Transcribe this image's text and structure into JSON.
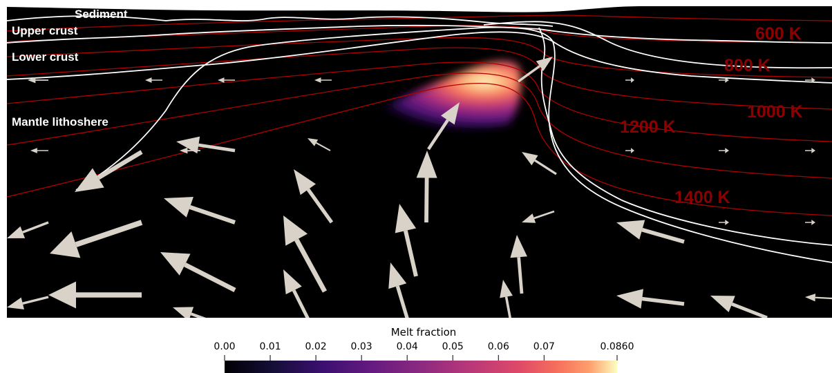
{
  "layer_labels": {
    "sediment": "Sediment",
    "upper_crust": "Upper crust",
    "lower_crust": "Lower crust",
    "mantle": "Mantle lithoshere"
  },
  "isotherm_labels": {
    "k600": "600 K",
    "k800": "800 K",
    "k1000": "1000 K",
    "k1200": "1200 K",
    "k1400": "1400 K"
  },
  "colorbar": {
    "title": "Melt fraction",
    "ticks": [
      "0.00",
      "0.01",
      "0.02",
      "0.03",
      "0.04",
      "0.05",
      "0.06",
      "0.07",
      "0.0860"
    ],
    "min": 0.0,
    "max": 0.086,
    "colormap": "magma"
  },
  "colors": {
    "background": "#000000",
    "isotherm": "#b00000",
    "isotherm_label": "#8b0000",
    "boundary": "#ffffff",
    "arrow": "#d8d2c8"
  }
}
